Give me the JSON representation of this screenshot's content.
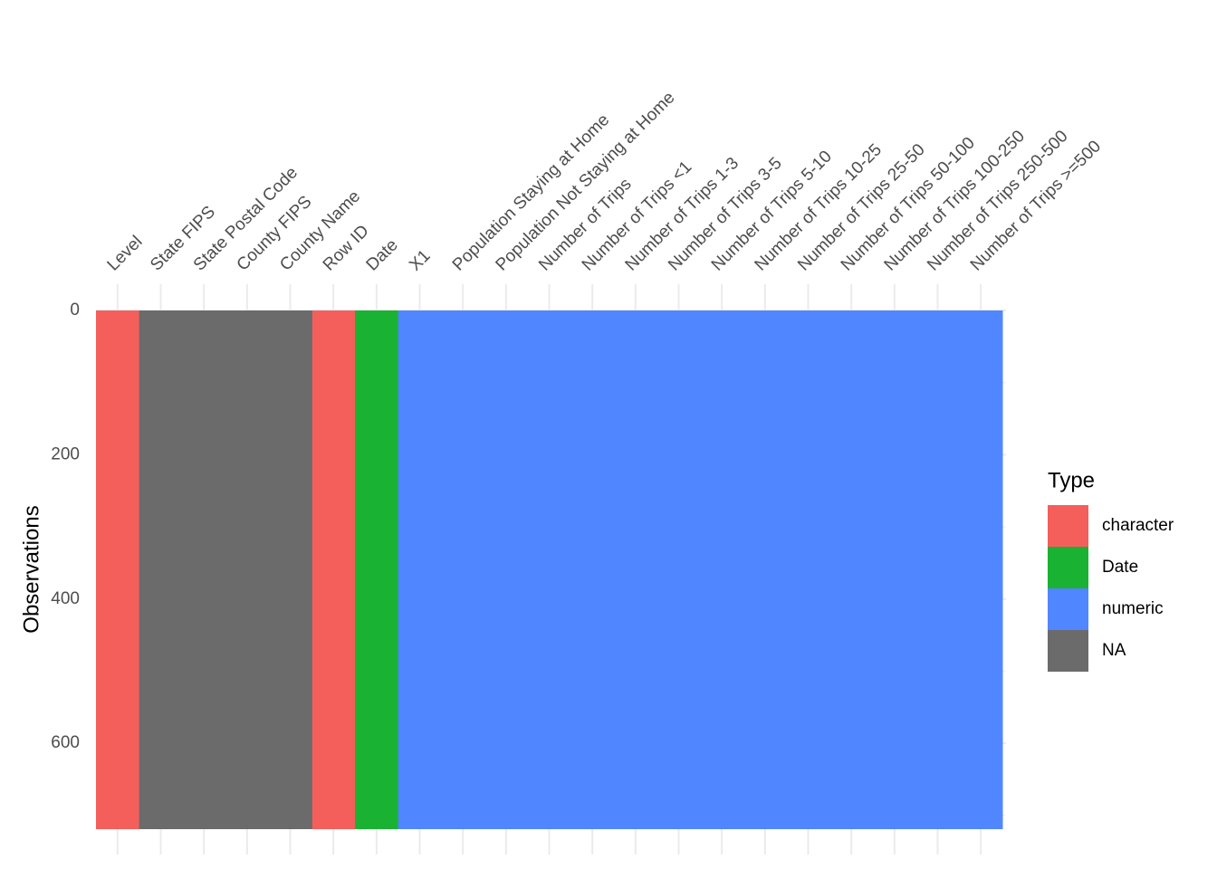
{
  "chart_data": {
    "type": "tile",
    "y_label": "Observations",
    "legend_title": "Type",
    "categories": [
      "Level",
      "State FIPS",
      "State Postal Code",
      "County FIPS",
      "County Name",
      "Row ID",
      "Date",
      "X1",
      "Population Staying at Home",
      "Population Not Staying at Home",
      "Number of Trips",
      "Number of Trips <1",
      "Number of Trips 1-3",
      "Number of Trips 3-5",
      "Number of Trips 5-10",
      "Number of Trips 10-25",
      "Number of Trips 25-50",
      "Number of Trips 50-100",
      "Number of Trips 100-250",
      "Number of Trips 250-500",
      "Number of Trips >=500"
    ],
    "series": [
      {
        "name": "character",
        "color": "#f45f5b",
        "values": [
          719,
          null,
          null,
          null,
          null,
          719,
          null,
          null,
          null,
          null,
          null,
          null,
          null,
          null,
          null,
          null,
          null,
          null,
          null,
          null,
          null
        ]
      },
      {
        "name": "Date",
        "color": "#1ab232",
        "values": [
          null,
          null,
          null,
          null,
          null,
          null,
          719,
          null,
          null,
          null,
          null,
          null,
          null,
          null,
          null,
          null,
          null,
          null,
          null,
          null,
          null
        ]
      },
      {
        "name": "numeric",
        "color": "#5086ff",
        "values": [
          null,
          null,
          null,
          null,
          null,
          null,
          null,
          719,
          719,
          719,
          719,
          719,
          719,
          719,
          719,
          719,
          719,
          719,
          719,
          719,
          719
        ]
      },
      {
        "name": "NA",
        "color": "#6b6b6b",
        "values": [
          null,
          719,
          719,
          719,
          719,
          null,
          null,
          null,
          null,
          null,
          null,
          null,
          null,
          null,
          null,
          null,
          null,
          null,
          null,
          null,
          null
        ]
      }
    ],
    "ylim": [
      0,
      719
    ],
    "yticks": [
      0,
      200,
      400,
      600
    ],
    "minor_yticks": [
      100,
      300,
      500,
      700
    ],
    "y_reversed": true,
    "grid": true,
    "legend_position": "right"
  }
}
